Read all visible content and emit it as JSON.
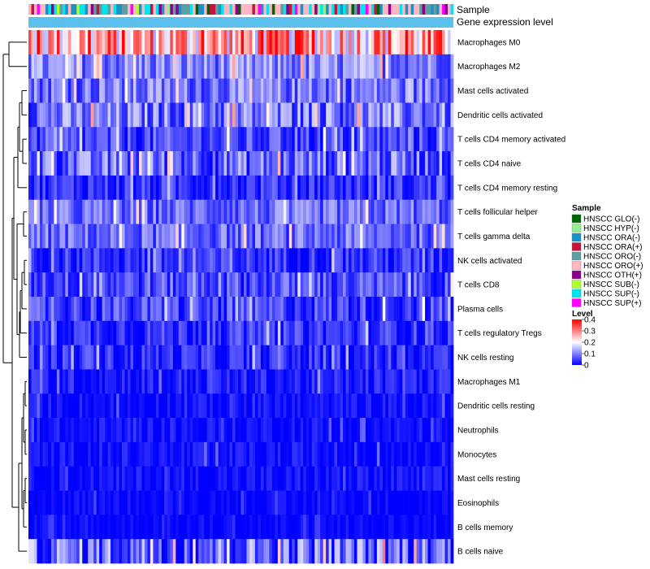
{
  "chart_data": {
    "type": "heatmap",
    "annotations": {
      "sample_label": "Sample",
      "expression_label": "Gene expression level"
    },
    "rows": [
      {
        "label": "Macrophages M0",
        "mean": 0.26,
        "spread": 0.14
      },
      {
        "label": "Macrophages M2",
        "mean": 0.1,
        "spread": 0.07
      },
      {
        "label": "Mast cells activated",
        "mean": 0.09,
        "spread": 0.07
      },
      {
        "label": "Dendritic cells activated",
        "mean": 0.09,
        "spread": 0.08
      },
      {
        "label": "T cells CD4 memory activated",
        "mean": 0.05,
        "spread": 0.06
      },
      {
        "label": "T cells CD4 naive",
        "mean": 0.08,
        "spread": 0.08
      },
      {
        "label": "T cells CD4 memory resting",
        "mean": 0.04,
        "spread": 0.05
      },
      {
        "label": "T cells follicular helper",
        "mean": 0.08,
        "spread": 0.06
      },
      {
        "label": "T cells gamma delta",
        "mean": 0.08,
        "spread": 0.06
      },
      {
        "label": "NK cells activated",
        "mean": 0.04,
        "spread": 0.05
      },
      {
        "label": "T cells CD8",
        "mean": 0.06,
        "spread": 0.06
      },
      {
        "label": "Plasma cells",
        "mean": 0.05,
        "spread": 0.06
      },
      {
        "label": "T cells regulatory  Tregs",
        "mean": 0.04,
        "spread": 0.05
      },
      {
        "label": "NK cells resting",
        "mean": 0.03,
        "spread": 0.05
      },
      {
        "label": "Macrophages M1",
        "mean": 0.02,
        "spread": 0.04
      },
      {
        "label": "Dendritic cells resting",
        "mean": 0.01,
        "spread": 0.03
      },
      {
        "label": "Neutrophils",
        "mean": 0.01,
        "spread": 0.03
      },
      {
        "label": "Monocytes",
        "mean": 0.01,
        "spread": 0.03
      },
      {
        "label": "Mast cells resting",
        "mean": 0.01,
        "spread": 0.03
      },
      {
        "label": "Eosinophils",
        "mean": 0.005,
        "spread": 0.02
      },
      {
        "label": "B cells memory",
        "mean": 0.005,
        "spread": 0.02
      },
      {
        "label": "B cells naive",
        "mean": 0.08,
        "spread": 0.1
      }
    ],
    "n_samples": 150,
    "legend_sample": {
      "title": "Sample",
      "items": [
        {
          "label": "HNSCC GLO(-)",
          "color": "#006400"
        },
        {
          "label": "HNSCC HYP(-)",
          "color": "#90ee90"
        },
        {
          "label": "HNSCC ORA(-)",
          "color": "#1e90c8"
        },
        {
          "label": "HNSCC ORA(+)",
          "color": "#c8143c"
        },
        {
          "label": "HNSCC ORO(-)",
          "color": "#5f9ea0"
        },
        {
          "label": "HNSCC ORO(+)",
          "color": "#ffb6c1"
        },
        {
          "label": "HNSCC OTH(+)",
          "color": "#8b008b"
        },
        {
          "label": "HNSCC SUB(-)",
          "color": "#adff2f"
        },
        {
          "label": "HNSCC SUP(-)",
          "color": "#00e5ee"
        },
        {
          "label": "HNSCC SUP(+)",
          "color": "#ff00ff"
        }
      ]
    },
    "legend_level": {
      "title": "Level",
      "ticks": [
        "0.4",
        "0.3",
        "0.2",
        "0.1",
        "0"
      ],
      "tick_values": [
        0.4,
        0.3,
        0.2,
        0.1,
        0
      ],
      "range": [
        0,
        0.4
      ],
      "colors": {
        "low": "#0000ff",
        "mid": "#ffffff",
        "high": "#ff0000",
        "mid_value": 0.2
      }
    },
    "expression_bar_color": "#5bc0eb",
    "dendrogram_color": "#000000"
  }
}
